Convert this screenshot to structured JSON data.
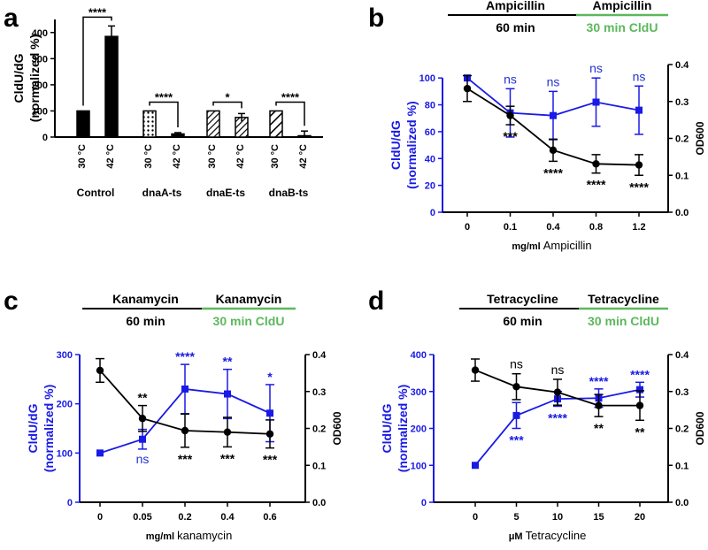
{
  "colors": {
    "black": "#000000",
    "blue": "#1a1ae6",
    "green": "#5cb85c",
    "ns_blue": "#2233cc"
  },
  "panels": {
    "a": "a",
    "b": "b",
    "c": "c",
    "d": "d"
  },
  "chart_data": [
    {
      "panel": "a",
      "type": "bar",
      "ylabel": [
        "CldU/dG",
        "(normalized %)"
      ],
      "ylim": [
        0,
        450
      ],
      "yticks": [
        0,
        100,
        200,
        300,
        400
      ],
      "temp_labels": [
        "30 °C",
        "42 °C"
      ],
      "groups": [
        {
          "name": "Control",
          "values": [
            100,
            385
          ],
          "errors": [
            0,
            40
          ],
          "patterns": [
            "solid",
            "solid"
          ],
          "sig": "****"
        },
        {
          "name": "dnaA-ts",
          "values": [
            100,
            12
          ],
          "errors": [
            0,
            5
          ],
          "patterns": [
            "dots",
            "solid"
          ],
          "sig": "****"
        },
        {
          "name": "dnaE-ts",
          "values": [
            100,
            75
          ],
          "errors": [
            0,
            15
          ],
          "patterns": [
            "hatch",
            "hatch"
          ],
          "sig": "*"
        },
        {
          "name": "dnaB-ts",
          "values": [
            100,
            5
          ],
          "errors": [
            0,
            18
          ],
          "patterns": [
            "hatch2",
            "solid"
          ],
          "sig": "****"
        }
      ]
    },
    {
      "panel": "b",
      "type": "line",
      "drug": "Ampicillin",
      "treatment": {
        "first": "Ampicillin",
        "second": "Ampicillin",
        "first_time": "60 min",
        "second_time": "30 min CldU"
      },
      "xlabel_unit": "mg/ml",
      "xlabel_drug": "Ampicillin",
      "categories": [
        "0",
        "0.1",
        "0.4",
        "0.8",
        "1.2"
      ],
      "ylabel_left": [
        "CldU/dG",
        "(normalized %)"
      ],
      "ylabel_right": "OD600",
      "ylim_left": [
        0,
        110
      ],
      "yticks_left": [
        0,
        20,
        40,
        60,
        80,
        100
      ],
      "ylim_right": [
        0,
        0.4
      ],
      "yticks_right": [
        "0.0",
        "0.1",
        "0.2",
        "0.3",
        "0.4"
      ],
      "series": [
        {
          "name": "CldU/dG",
          "axis": "left",
          "color": "blue",
          "marker": "square",
          "values": [
            100,
            74,
            72,
            82,
            76
          ],
          "errors": [
            0,
            18,
            18,
            18,
            18
          ],
          "sig": [
            "",
            "ns",
            "ns",
            "ns",
            "ns"
          ],
          "sig_pos": [
            "",
            "above",
            "above",
            "above",
            "above"
          ]
        },
        {
          "name": "OD600",
          "axis": "right",
          "color": "black",
          "marker": "circle",
          "values": [
            0.335,
            0.262,
            0.168,
            0.131,
            0.128
          ],
          "errors": [
            0.035,
            0.025,
            0.03,
            0.025,
            0.028
          ],
          "sig": [
            "",
            "***",
            "****",
            "****",
            "****"
          ],
          "sig_pos": [
            "",
            "below",
            "below",
            "below",
            "below"
          ]
        }
      ]
    },
    {
      "panel": "c",
      "type": "line",
      "drug": "Kanamycin",
      "treatment": {
        "first": "Kanamycin",
        "second": "Kanamycin",
        "first_time": "60 min",
        "second_time": "30 min CldU"
      },
      "xlabel_unit": "mg/ml",
      "xlabel_drug": "kanamycin",
      "categories": [
        "0",
        "0.05",
        "0.2",
        "0.4",
        "0.6"
      ],
      "ylabel_left": [
        "CldU/dG",
        "(normalized %)"
      ],
      "ylabel_right": "OD600",
      "ylim_left": [
        0,
        300
      ],
      "yticks_left": [
        0,
        100,
        200,
        300
      ],
      "ylim_right": [
        0,
        0.4
      ],
      "yticks_right": [
        "0.0",
        "0.1",
        "0.2",
        "0.3",
        "0.4"
      ],
      "series": [
        {
          "name": "CldU/dG",
          "axis": "left",
          "color": "blue",
          "marker": "square",
          "values": [
            100,
            128,
            230,
            220,
            181
          ],
          "errors": [
            0,
            20,
            50,
            50,
            58
          ],
          "sig": [
            "",
            "ns",
            "****",
            "**",
            "*"
          ],
          "sig_pos": [
            "",
            "below",
            "above",
            "above",
            "above"
          ]
        },
        {
          "name": "OD600",
          "axis": "right",
          "color": "black",
          "marker": "circle",
          "values": [
            0.357,
            0.227,
            0.194,
            0.19,
            0.185
          ],
          "errors": [
            0.032,
            0.035,
            0.045,
            0.04,
            0.038
          ],
          "sig": [
            "",
            "**",
            "***",
            "***",
            "***"
          ],
          "sig_pos": [
            "",
            "above",
            "below",
            "below",
            "below"
          ]
        }
      ]
    },
    {
      "panel": "d",
      "type": "line",
      "drug": "Tetracycline",
      "treatment": {
        "first": "Tetracycline",
        "second": "Tetracycline",
        "first_time": "60 min",
        "second_time": "30 min CldU"
      },
      "xlabel_unit": "μM",
      "xlabel_drug": "Tetracycline",
      "categories": [
        "0",
        "5",
        "10",
        "15",
        "20"
      ],
      "ylabel_left": [
        "CldU/dG",
        "(normalized %)"
      ],
      "ylabel_right": "OD600",
      "ylim_left": [
        0,
        400
      ],
      "yticks_left": [
        0,
        100,
        200,
        300,
        400
      ],
      "ylim_right": [
        0,
        0.4
      ],
      "yticks_right": [
        "0.0",
        "0.1",
        "0.2",
        "0.3",
        "0.4"
      ],
      "series": [
        {
          "name": "CldU/dG",
          "axis": "left",
          "color": "blue",
          "marker": "square",
          "values": [
            100,
            235,
            280,
            282,
            305
          ],
          "errors": [
            0,
            35,
            20,
            25,
            20
          ],
          "sig": [
            "",
            "***",
            "****",
            "****",
            "****"
          ],
          "sig_pos": [
            "",
            "below",
            "below",
            "above",
            "above"
          ]
        },
        {
          "name": "OD600",
          "axis": "right",
          "color": "black",
          "marker": "circle",
          "values": [
            0.358,
            0.313,
            0.298,
            0.262,
            0.262
          ],
          "errors": [
            0.03,
            0.035,
            0.035,
            0.03,
            0.04
          ],
          "sig": [
            "",
            "ns",
            "ns",
            "**",
            "**"
          ],
          "sig_pos": [
            "",
            "above",
            "above",
            "below",
            "below"
          ]
        }
      ]
    }
  ]
}
